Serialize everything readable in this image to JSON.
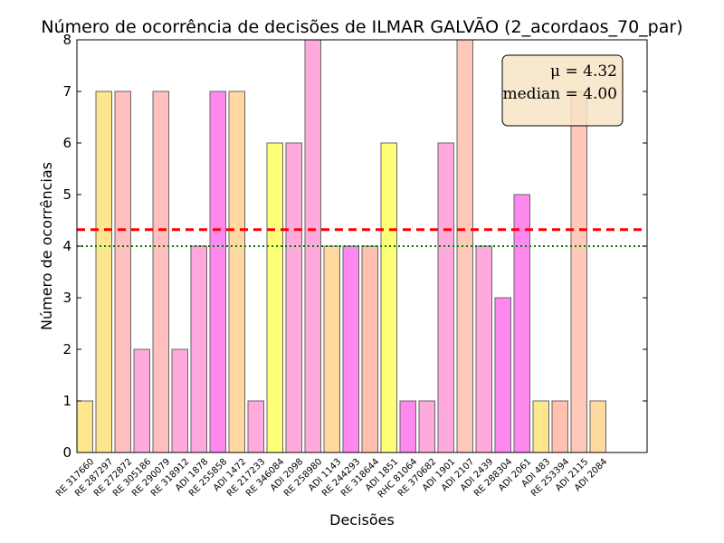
{
  "chart_data": {
    "type": "bar",
    "title": "Número de ocorrência de decisões de ILMAR GALVÃO (2_acordaos_70_par)",
    "xlabel": "Decisões",
    "ylabel": "Número de ocorrências",
    "ylim": [
      0,
      8
    ],
    "yticks": [
      "0",
      "1",
      "2",
      "3",
      "4",
      "5",
      "6",
      "7",
      "8"
    ],
    "categories": [
      "RE 317660",
      "RE 287297",
      "RE 272872",
      "RE 305186",
      "RE 290079",
      "RE 318912",
      "ADI 1878",
      "RE 255858",
      "ADI 1472",
      "RE 217233",
      "RE 346084",
      "ADI 2098",
      "RE 258980",
      "ADI 1143",
      "RE 244293",
      "RE 318644",
      "ADI 1851",
      "RHC 81064",
      "RE 370682",
      "ADI 1901",
      "ADI 2107",
      "ADI 2439",
      "RE 288304",
      "ADI 2061",
      "ADI 483",
      "RE 253394",
      "ADI 2115",
      "ADI 2084"
    ],
    "values": [
      1,
      7,
      7,
      2,
      7,
      2,
      4,
      7,
      7,
      1,
      6,
      6,
      8,
      4,
      4,
      4,
      6,
      1,
      1,
      6,
      8,
      4,
      3,
      5,
      1,
      1,
      7,
      1
    ],
    "bar_colors": [
      "#fde68e",
      "#fde68e",
      "#ffbfbf",
      "#ffaadd",
      "#ffbfbf",
      "#ffaadd",
      "#ffa8dd",
      "#ff88ee",
      "#ffd9a0",
      "#ffaadd",
      "#ffff77",
      "#ffaadd",
      "#ffaadd",
      "#ffd9a0",
      "#ff88ee",
      "#ffc0b0",
      "#ffff77",
      "#ff88ee",
      "#ffaadd",
      "#ffaadd",
      "#ffc8b8",
      "#ffaadd",
      "#ff88ee",
      "#ff88ee",
      "#fde68e",
      "#ffc0b0",
      "#ffc8b8",
      "#ffd9a0"
    ],
    "mean": 4.32,
    "median": 4.0,
    "mean_line_color": "#ff0000",
    "median_line_color": "#007700",
    "legend": {
      "mean_text": "μ = 4.32",
      "median_text": "median = 4.00",
      "placement": "top-right"
    },
    "grid": false
  }
}
